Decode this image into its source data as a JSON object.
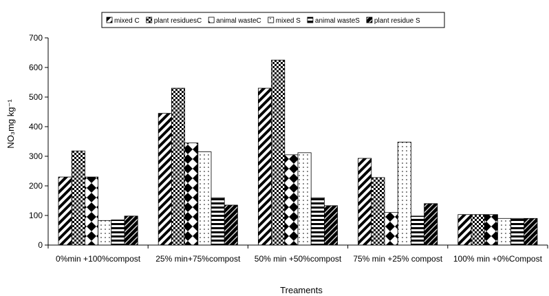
{
  "chart_data": {
    "type": "bar",
    "xlabel": "Treaments",
    "ylabel": "NO₃mg kg⁻¹",
    "ylim": [
      0,
      700
    ],
    "yticks": [
      0,
      100,
      200,
      300,
      400,
      500,
      600,
      700
    ],
    "grid": false,
    "legend_placement": "top",
    "categories": [
      "0%min +100%compost",
      "25% min+75%compost",
      "50% min +50%compost",
      "75% min +25% compost",
      "100% min +0%Compost"
    ],
    "series": [
      {
        "name": "mixed C",
        "values": [
          230,
          445,
          530,
          293,
          103
        ],
        "pattern": "diagonal-stripes"
      },
      {
        "name": "plant residuesC",
        "values": [
          318,
          530,
          625,
          228,
          103
        ],
        "pattern": "checker"
      },
      {
        "name": "animal wasteC",
        "values": [
          230,
          345,
          305,
          110,
          103
        ],
        "pattern": "diamond"
      },
      {
        "name": "mixed S",
        "values": [
          83,
          315,
          312,
          348,
          90
        ],
        "pattern": "dots"
      },
      {
        "name": "animal wasteS",
        "values": [
          85,
          160,
          160,
          98,
          90
        ],
        "pattern": "horizontal-stripes"
      },
      {
        "name": "plant residue S",
        "values": [
          98,
          135,
          133,
          140,
          90
        ],
        "pattern": "dense"
      }
    ]
  }
}
